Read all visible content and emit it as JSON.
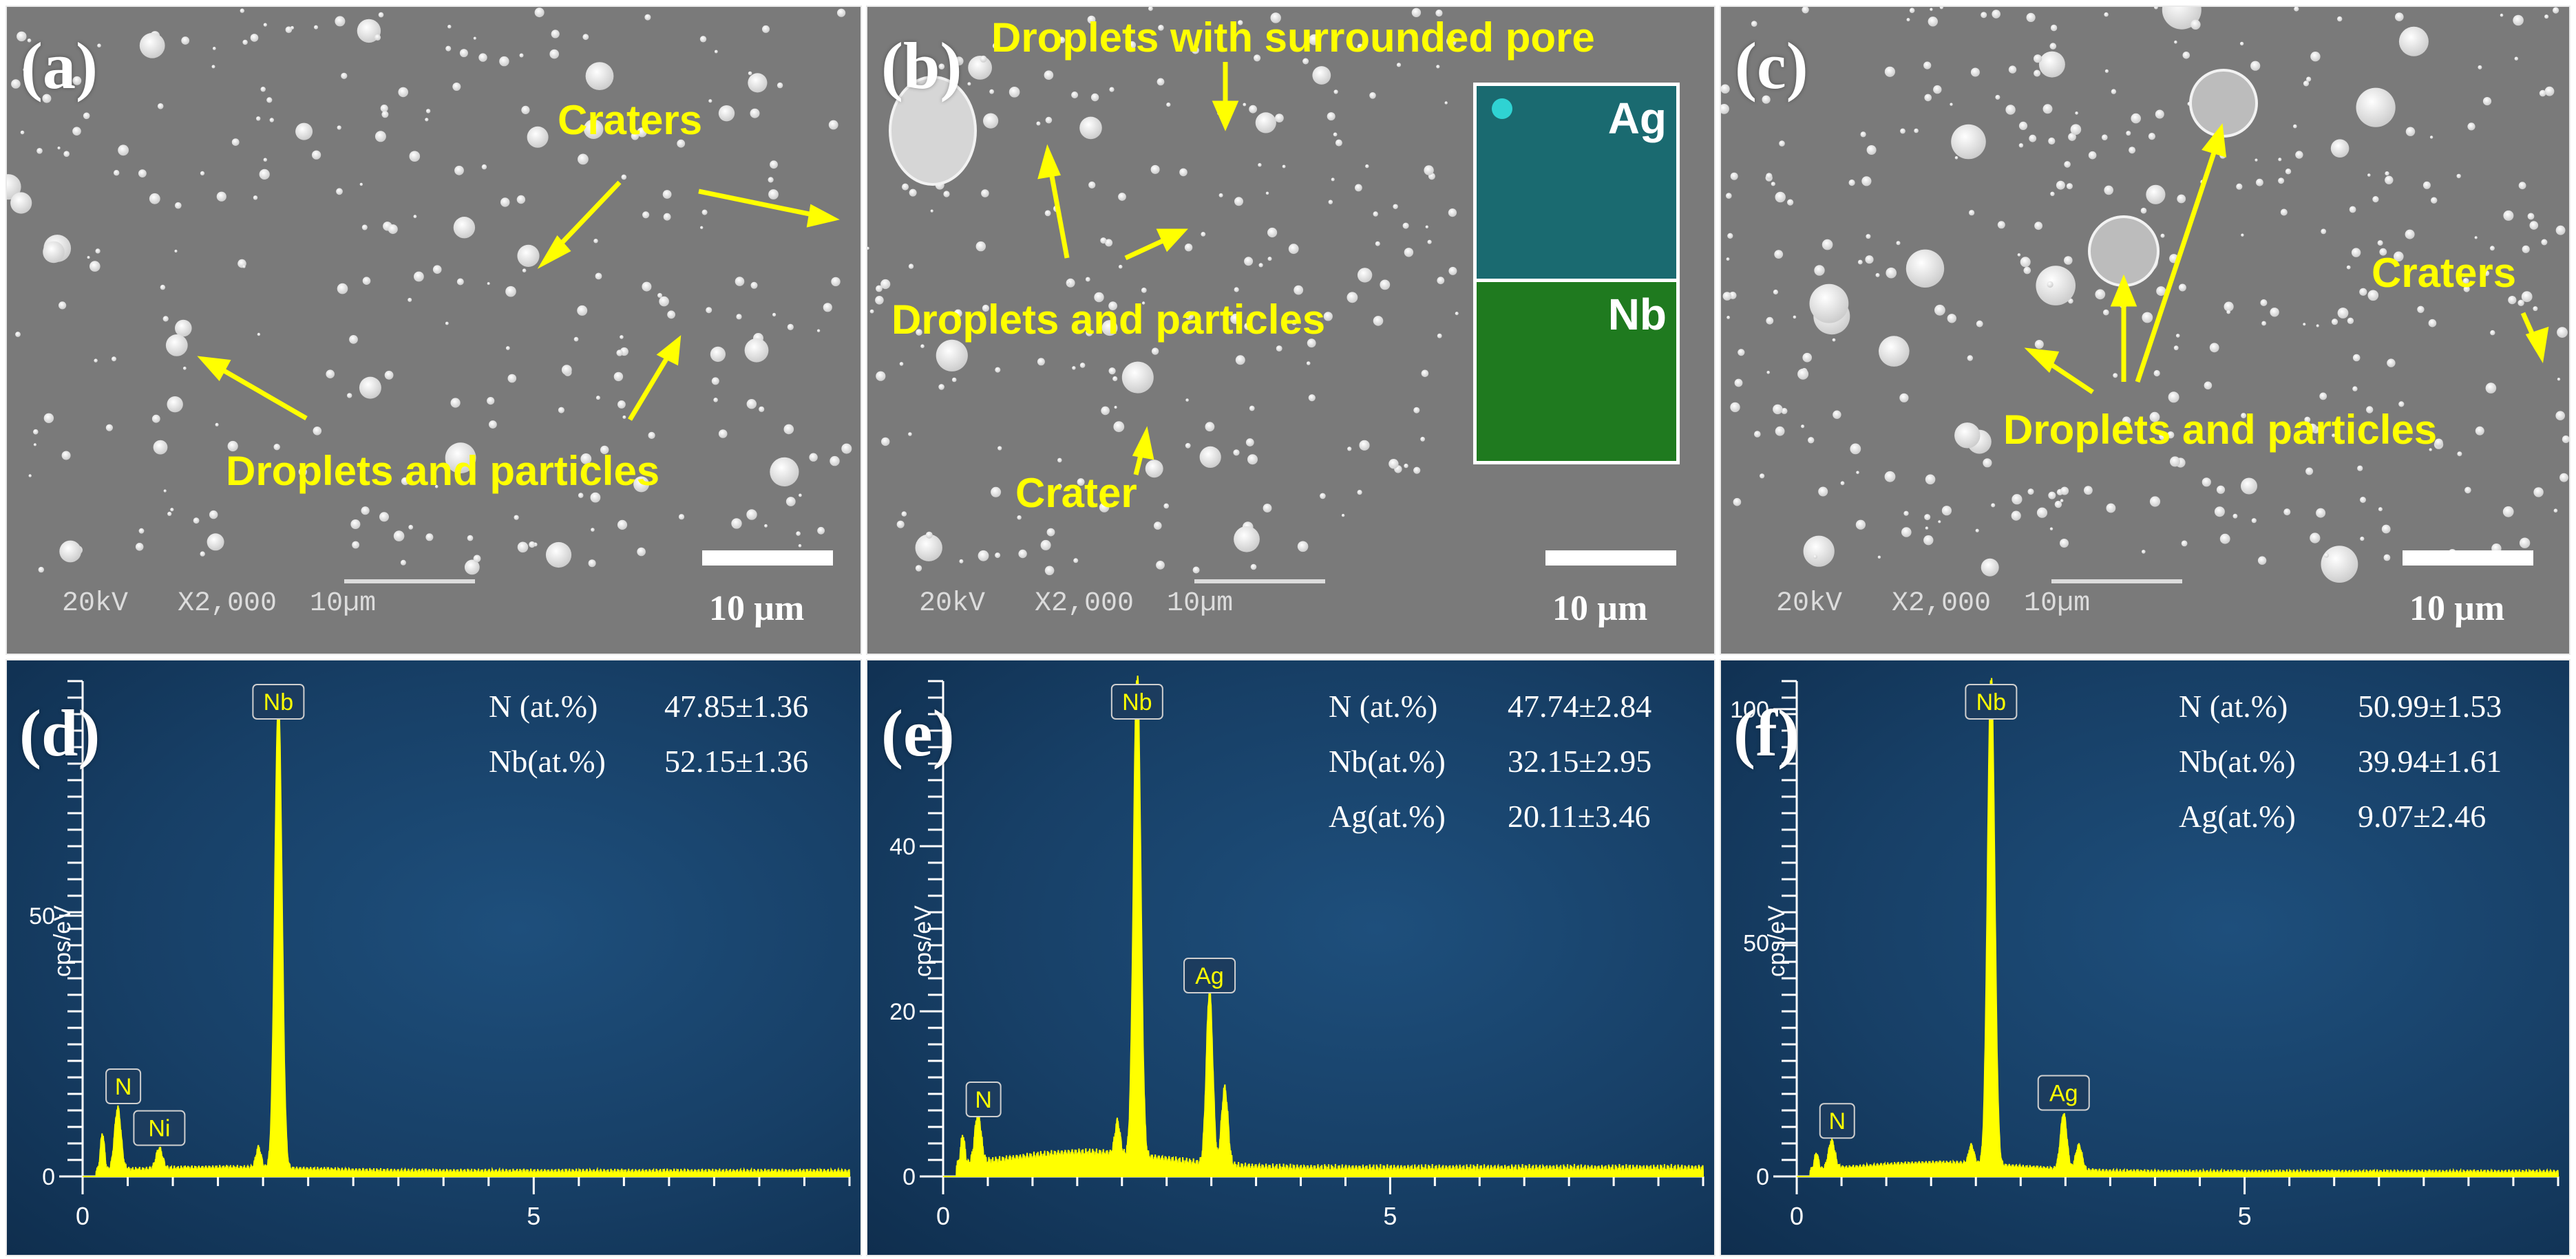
{
  "sem_panels": [
    {
      "label": "(a)",
      "annotations": [
        "Craters",
        "Droplets and particles"
      ],
      "scale_label": "10 µm",
      "instrument_text": "20kV   X2,000  10µm"
    },
    {
      "label": "(b)",
      "annotations": [
        "Droplets with surrounded pore",
        "Droplets and particles",
        "Crater"
      ],
      "scale_label": "10 µm",
      "instrument_text": "20kV   X2,000  10µm",
      "inset_labels": [
        "Ag",
        "Nb"
      ]
    },
    {
      "label": "(c)",
      "annotations": [
        "Craters",
        "Droplets and particles"
      ],
      "scale_label": "10 µm",
      "instrument_text": "20kV   X2,000  10µm"
    }
  ],
  "colors": {
    "annotation": "#ffff00",
    "spectrum": "#ffff00",
    "eds_bg": "#173f66",
    "ag_map": "#1a6e6e",
    "nb_map": "#1f7a1f"
  },
  "chart_data": [
    {
      "type": "area",
      "label": "(d)",
      "ylabel": "cps/eV",
      "xlim": [
        0,
        8.5
      ],
      "ylim": [
        0,
        95
      ],
      "yticks": [
        0,
        50
      ],
      "xticks": [
        0,
        5
      ],
      "peaks": [
        {
          "name": "N",
          "x": 0.39,
          "y": 12
        },
        {
          "name": "Ni",
          "x": 0.85,
          "y": 4
        },
        {
          "name": "Nb",
          "x": 2.17,
          "y": 90
        }
      ],
      "composition": [
        {
          "label": "N (at.%)",
          "value": "47.85±1.36"
        },
        {
          "label": "Nb(at.%)",
          "value": "52.15±1.36"
        }
      ]
    },
    {
      "type": "area",
      "label": "(e)",
      "ylabel": "cps/eV",
      "xlim": [
        0,
        8.5
      ],
      "ylim": [
        0,
        60
      ],
      "yticks": [
        0,
        20,
        40
      ],
      "xticks": [
        0,
        5
      ],
      "peaks": [
        {
          "name": "N",
          "x": 0.39,
          "y": 6
        },
        {
          "name": "Nb",
          "x": 2.17,
          "y": 60
        },
        {
          "name": "Ag",
          "x": 2.98,
          "y": 21
        }
      ],
      "composition": [
        {
          "label": "N (at.%)",
          "value": "47.74±2.84"
        },
        {
          "label": "Nb(at.%)",
          "value": "32.15±2.95"
        },
        {
          "label": "Ag(at.%)",
          "value": "20.11±3.46"
        }
      ]
    },
    {
      "type": "area",
      "label": "(f)",
      "ylabel": "cps/eV",
      "xlim": [
        0,
        8.5
      ],
      "ylim": [
        0,
        106
      ],
      "yticks": [
        0,
        50,
        100
      ],
      "xticks": [
        0,
        5
      ],
      "peaks": [
        {
          "name": "N",
          "x": 0.39,
          "y": 6
        },
        {
          "name": "Nb",
          "x": 2.17,
          "y": 106
        },
        {
          "name": "Ag",
          "x": 2.98,
          "y": 12
        }
      ],
      "composition": [
        {
          "label": "N (at.%)",
          "value": "50.99±1.53"
        },
        {
          "label": "Nb(at.%)",
          "value": "39.94±1.61"
        },
        {
          "label": "Ag(at.%)",
          "value": "9.07±2.46"
        }
      ]
    }
  ]
}
